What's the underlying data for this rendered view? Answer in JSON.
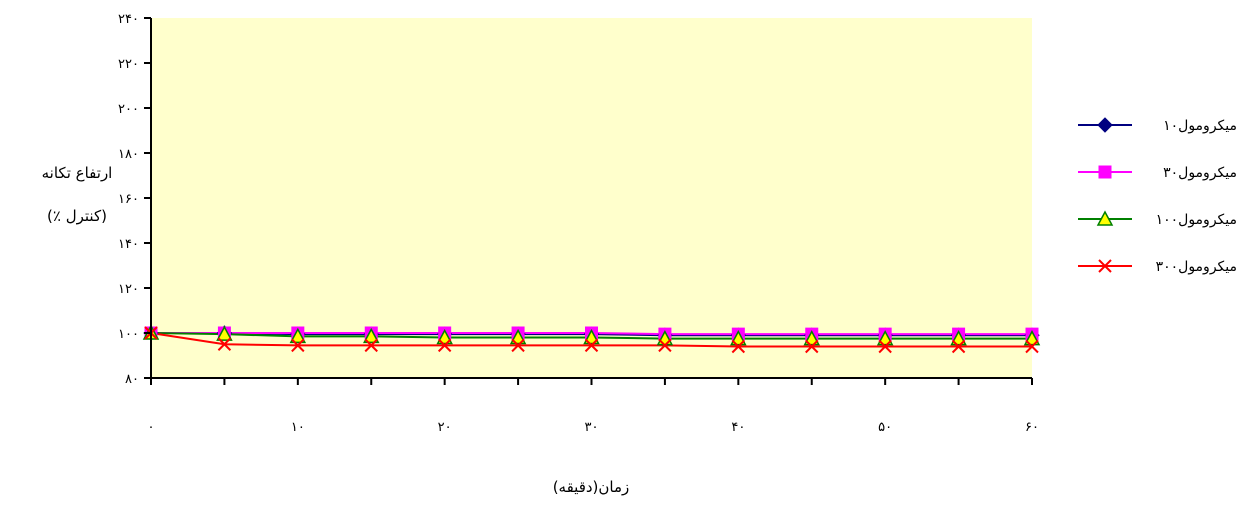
{
  "chart_data": {
    "type": "line",
    "xlabel": "زمان(دقیقه)",
    "ylabel": [
      "ارتفاع تکانه",
      "(٪ کنترل)"
    ],
    "x": [
      0,
      5,
      10,
      15,
      20,
      25,
      30,
      35,
      40,
      45,
      50,
      55,
      60
    ],
    "xlim": [
      0,
      60
    ],
    "ylim": [
      80,
      240
    ],
    "x_ticks": [
      0,
      10,
      20,
      30,
      40,
      50,
      60
    ],
    "x_tick_labels": [
      "۰",
      "۱۰",
      "۲۰",
      "۳۰",
      "۴۰",
      "۵۰",
      "۶۰"
    ],
    "y_ticks": [
      80,
      100,
      120,
      140,
      160,
      180,
      200,
      220,
      240
    ],
    "y_tick_labels": [
      "۸۰",
      "۱۰۰",
      "۱۲۰",
      "۱۴۰",
      "۱۶۰",
      "۱۸۰",
      "۲۰۰",
      "۲۲۰",
      "۲۴۰"
    ],
    "plot_background": "#ffffcc",
    "grid": false,
    "legend_position": "right",
    "series": [
      {
        "name": "۱۰میکرومول",
        "color": "#000080",
        "marker": "diamond",
        "values": [
          100,
          100,
          99.5,
          99.5,
          99.5,
          99.5,
          99.5,
          99,
          99,
          99,
          99,
          99,
          99
        ]
      },
      {
        "name": "۳۰میکرومول",
        "color": "#ff00ff",
        "marker": "square",
        "values": [
          100,
          100,
          100,
          100,
          100,
          100,
          100,
          99.5,
          99.5,
          99.5,
          99.5,
          99.5,
          99.5
        ]
      },
      {
        "name": "۱۰۰میکرومول",
        "color": "#008000",
        "marker": "triangle",
        "values": [
          100,
          99.5,
          98.5,
          98.5,
          98,
          98,
          98,
          97.5,
          97.5,
          97.5,
          97.5,
          97.5,
          97.5
        ]
      },
      {
        "name": "۳۰۰میکرومول",
        "color": "#ff0000",
        "marker": "x",
        "values": [
          100,
          95,
          94.5,
          94.5,
          94.5,
          94.5,
          94.5,
          94.5,
          94,
          94,
          94,
          94,
          94
        ]
      }
    ]
  }
}
